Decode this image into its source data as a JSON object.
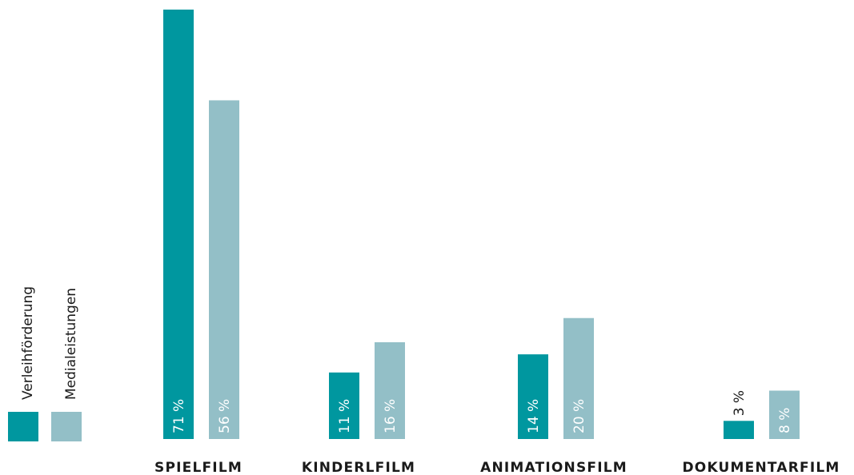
{
  "colors": {
    "verleih": "#00979f",
    "media": "#93bfc7",
    "text_dark": "#1a1a1a",
    "text_on_bar": "#ffffff"
  },
  "legend": [
    {
      "label": "Verleihförderung",
      "color": "#00979f"
    },
    {
      "label": "Medialeistungen",
      "color": "#93bfc7"
    }
  ],
  "chart_data": {
    "type": "bar",
    "categories": [
      "SPIELFILM",
      "KINDERLFILM",
      "ANIMATIONSFILM",
      "DOKUMENTARFILM"
    ],
    "series": [
      {
        "name": "Verleihförderung",
        "values": [
          71,
          11,
          14,
          3
        ],
        "labels": [
          "71 %",
          "11 %",
          "14 %",
          "3 %"
        ]
      },
      {
        "name": "Medialeistungen",
        "values": [
          56,
          16,
          20,
          8
        ],
        "labels": [
          "56 %",
          "16 %",
          "20 %",
          "8 %"
        ]
      }
    ],
    "unit": "%",
    "ylim": [
      0,
      71
    ],
    "grid": false,
    "legend_position": "left",
    "value_labels": "vertical, inside bars (above bar when too short)"
  }
}
